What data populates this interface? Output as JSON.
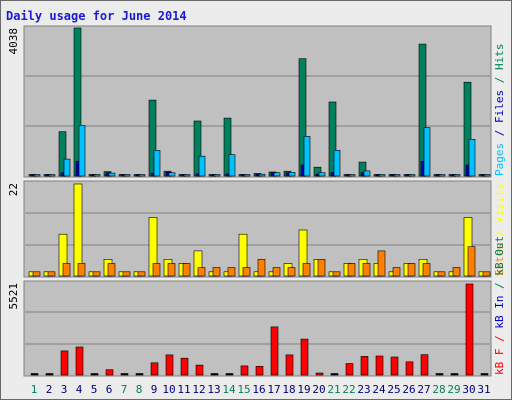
{
  "title": "Daily usage for June 2014",
  "colors": {
    "hits": "#00805c",
    "files": "#0000c0",
    "pages": "#00c0ff",
    "visits": "#ffff00",
    "sites": "#ff8000",
    "kbout": "#008040",
    "kbin": "#0000c0",
    "kbf": "#ff0000",
    "day_weekday": "#000080",
    "day_weekend": "#00805c",
    "panel_bg": "#c0c0c0"
  },
  "labels": {
    "top_max": "4038",
    "mid_max": "22",
    "bot_max": "5521",
    "top_legend": [
      {
        "text": "Pages",
        "color_key": "pages"
      },
      {
        "text": " / ",
        "color_key": "files"
      },
      {
        "text": "Files",
        "color_key": "files"
      },
      {
        "text": " / ",
        "color_key": "hits"
      },
      {
        "text": "Hits",
        "color_key": "hits"
      }
    ],
    "mid_legend": [
      {
        "text": "Sites",
        "color_key": "sites"
      },
      {
        "text": " / ",
        "color_key": "visits"
      },
      {
        "text": "Visits",
        "color_key": "visits"
      }
    ],
    "bot_legend": [
      {
        "text": "kB F",
        "color_key": "kbf"
      },
      {
        "text": " / ",
        "color_key": "kbf"
      },
      {
        "text": "kB In",
        "color_key": "kbin"
      },
      {
        "text": " / ",
        "color_key": "kbout"
      },
      {
        "text": "kB Out",
        "color_key": "kbout"
      }
    ]
  },
  "chart_data": {
    "type": "bar",
    "days": [
      "1",
      "2",
      "3",
      "4",
      "5",
      "6",
      "7",
      "8",
      "9",
      "10",
      "11",
      "12",
      "13",
      "14",
      "15",
      "16",
      "17",
      "18",
      "19",
      "20",
      "21",
      "22",
      "23",
      "24",
      "25",
      "26",
      "27",
      "28",
      "29",
      "30",
      "31"
    ],
    "weekend_days": [
      "1",
      "7",
      "8",
      "14",
      "15",
      "21",
      "22",
      "28",
      "29"
    ],
    "top": {
      "ymax": 4038,
      "series": [
        {
          "name": "Hits",
          "values": [
            40,
            40,
            1210,
            4038,
            40,
            120,
            40,
            40,
            2070,
            130,
            40,
            1500,
            40,
            1580,
            40,
            70,
            110,
            130,
            3200,
            240,
            2020,
            40,
            380,
            40,
            40,
            40,
            3600,
            40,
            40,
            2560,
            40
          ]
        },
        {
          "name": "Files",
          "values": [
            30,
            30,
            90,
            400,
            30,
            90,
            30,
            30,
            80,
            100,
            30,
            60,
            30,
            60,
            30,
            50,
            90,
            90,
            300,
            50,
            100,
            30,
            90,
            30,
            30,
            30,
            400,
            30,
            30,
            300,
            30
          ]
        },
        {
          "name": "Pages",
          "values": [
            20,
            20,
            460,
            1380,
            20,
            80,
            20,
            20,
            700,
            90,
            20,
            540,
            20,
            580,
            20,
            50,
            90,
            100,
            1080,
            90,
            700,
            20,
            140,
            20,
            20,
            20,
            1320,
            20,
            20,
            1000,
            20
          ]
        }
      ]
    },
    "middle": {
      "ymax": 22,
      "series": [
        {
          "name": "Visits",
          "values": [
            1,
            1,
            10,
            22,
            1,
            4,
            1,
            1,
            14,
            4,
            3,
            6,
            1,
            1,
            10,
            1,
            1,
            3,
            11,
            4,
            1,
            3,
            4,
            3,
            1,
            3,
            4,
            1,
            1,
            14,
            1
          ]
        },
        {
          "name": "Sites",
          "values": [
            1,
            1,
            3,
            3,
            1,
            3,
            1,
            1,
            3,
            3,
            3,
            2,
            2,
            2,
            2,
            4,
            2,
            2,
            3,
            4,
            1,
            3,
            3,
            6,
            2,
            3,
            3,
            1,
            2,
            7,
            1
          ]
        }
      ]
    },
    "bottom": {
      "ymax": 5521,
      "series": [
        {
          "name": "kB F",
          "values": [
            0,
            0,
            1460,
            1700,
            0,
            320,
            0,
            0,
            740,
            1220,
            1020,
            600,
            0,
            0,
            550,
            530,
            2920,
            1220,
            2180,
            120,
            0,
            700,
            1130,
            1150,
            1090,
            800,
            1230,
            0,
            0,
            5521,
            0
          ]
        },
        {
          "name": "kB In",
          "values": [
            0,
            0,
            0,
            0,
            0,
            0,
            0,
            0,
            0,
            0,
            0,
            0,
            0,
            0,
            0,
            0,
            0,
            0,
            0,
            0,
            0,
            0,
            0,
            0,
            0,
            0,
            0,
            0,
            0,
            0,
            0
          ]
        },
        {
          "name": "kB Out",
          "values": [
            0,
            0,
            0,
            0,
            0,
            0,
            0,
            0,
            0,
            0,
            0,
            0,
            0,
            0,
            0,
            0,
            0,
            0,
            0,
            0,
            0,
            0,
            0,
            0,
            0,
            0,
            0,
            0,
            0,
            0,
            0
          ]
        }
      ]
    }
  }
}
